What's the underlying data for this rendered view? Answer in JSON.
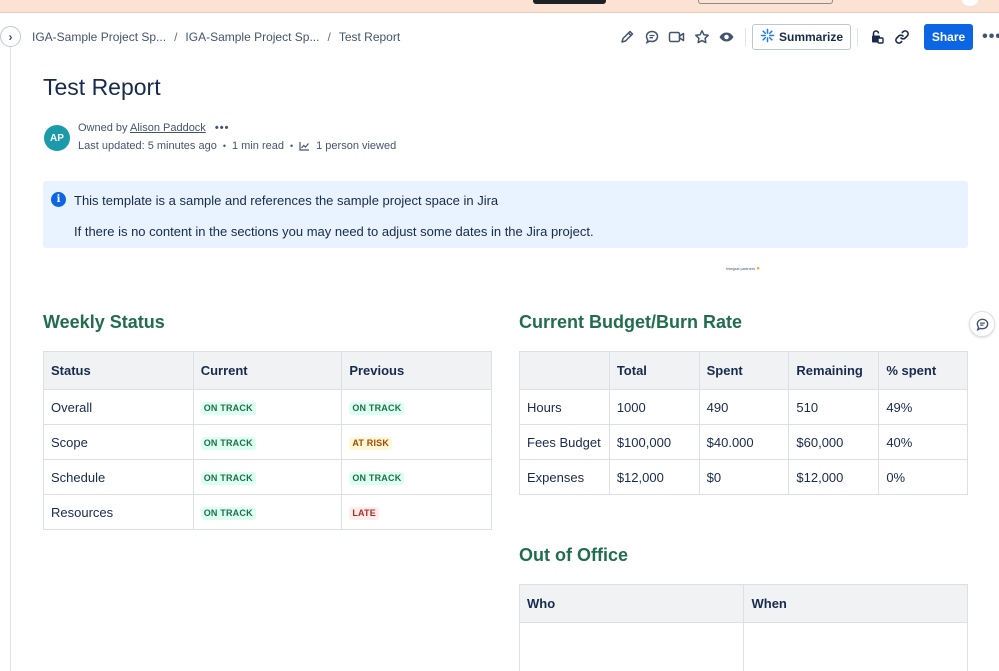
{
  "breadcrumb": {
    "items": [
      "IGA-Sample Project Sp...",
      "IGA-Sample Project Sp...",
      "Test Report"
    ],
    "separator": "/"
  },
  "toolbar": {
    "icons": [
      "edit-icon",
      "comment-icon",
      "video-icon",
      "star-icon",
      "watch-icon",
      "summarize-icon",
      "restrictions-icon",
      "link-icon",
      "more-icon"
    ],
    "summarize_label": "Summarize",
    "share_label": "Share",
    "more_label": "•••"
  },
  "page": {
    "title": "Test Report",
    "avatar_initials": "AP",
    "owned_by_prefix": "Owned by",
    "owner_name": "Alison Paddock",
    "owner_more": "•••",
    "last_updated": "Last updated: 5 minutes ago",
    "read_time": "1 min read",
    "viewers": "1 person viewed",
    "dot": "•"
  },
  "info_panel": {
    "line1": "This template is a sample and references the sample project space in Jira",
    "line2": "If there is no content in the sections you may need to adjust some dates in the Jira project."
  },
  "tiny_note": "Integral partners",
  "weekly_status": {
    "heading": "Weekly Status",
    "columns": [
      "Status",
      "Current",
      "Previous"
    ],
    "rows": [
      {
        "status": "Overall",
        "current": "ON TRACK",
        "previous": "ON TRACK"
      },
      {
        "status": "Scope",
        "current": "ON TRACK",
        "previous": "AT RISK"
      },
      {
        "status": "Schedule",
        "current": "ON TRACK",
        "previous": "ON TRACK"
      },
      {
        "status": "Resources",
        "current": "ON TRACK",
        "previous": "LATE"
      }
    ]
  },
  "budget": {
    "heading": "Current Budget/Burn Rate",
    "columns": [
      "",
      "Total",
      "Spent",
      "Remaining",
      "% spent"
    ],
    "rows": [
      {
        "label": "Hours",
        "total": "1000",
        "spent": "490",
        "remaining": "510",
        "pct": "49%"
      },
      {
        "label": "Fees Budget",
        "total": "$100,000",
        "spent": "$40.000",
        "remaining": "$60,000",
        "pct": "40%"
      },
      {
        "label": "Expenses",
        "total": "$12,000",
        "spent": "$0",
        "remaining": "$12,000",
        "pct": "0%"
      }
    ]
  },
  "out_of_office": {
    "heading": "Out of Office",
    "columns": [
      "Who",
      "When"
    ]
  },
  "colors": {
    "accent": "#0c66e4",
    "heading_green": "#216e4e",
    "info_bg": "#e9f2ff"
  }
}
